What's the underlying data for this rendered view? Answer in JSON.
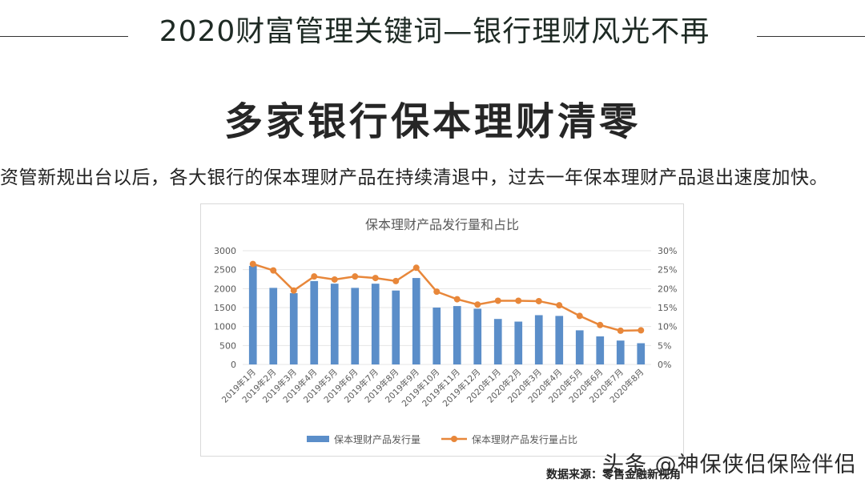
{
  "header": {
    "title": "2020财富管理关键词—银行理财风光不再"
  },
  "slide": {
    "heading": "多家银行保本理财清零",
    "body": "资管新规出台以后，各大银行的保本理财产品在持续清退中，过去一年保本理财产品退出速度加快。"
  },
  "source": "数据来源：零售金融新视角",
  "watermark": "头条 @神保侠侣保险伴侣",
  "colors": {
    "bar": "#5b8ec9",
    "line": "#e8873a",
    "grid": "#e6e6e6",
    "axis_text": "#595959"
  },
  "chart_data": {
    "type": "bar",
    "title": "保本理财产品发行量和占比",
    "categories": [
      "2019年1月",
      "2019年2月",
      "2019年3月",
      "2019年4月",
      "2019年5月",
      "2019年6月",
      "2019年7月",
      "2019年8月",
      "2019年9月",
      "2019年10月",
      "2019年11月",
      "2019年12月",
      "2020年1月",
      "2020年2月",
      "2020年3月",
      "2020年4月",
      "2020年5月",
      "2020年6月",
      "2020年7月",
      "2020年8月"
    ],
    "series": [
      {
        "name": "保本理财产品发行量",
        "type": "bar",
        "axis": "left",
        "values": [
          2600,
          2020,
          1880,
          2200,
          2130,
          2020,
          2130,
          1950,
          2280,
          1500,
          1540,
          1470,
          1200,
          1130,
          1300,
          1280,
          900,
          740,
          630,
          560
        ]
      },
      {
        "name": "保本理财产品发行量占比",
        "type": "line",
        "axis": "right",
        "values": [
          26.5,
          24.8,
          19.5,
          23.2,
          22.4,
          23.2,
          22.8,
          22.0,
          25.5,
          19.2,
          17.2,
          15.8,
          16.8,
          16.8,
          16.7,
          15.6,
          12.8,
          10.4,
          8.9,
          9.0
        ]
      }
    ],
    "y_left": {
      "min": 0,
      "max": 3000,
      "step": 500,
      "ticks": [
        "0",
        "500",
        "1000",
        "1500",
        "2000",
        "2500",
        "3000"
      ]
    },
    "y_right": {
      "min": 0,
      "max": 30,
      "step": 5,
      "ticks": [
        "0%",
        "5%",
        "10%",
        "15%",
        "20%",
        "25%",
        "30%"
      ]
    },
    "grid": true,
    "legend_position": "bottom"
  }
}
